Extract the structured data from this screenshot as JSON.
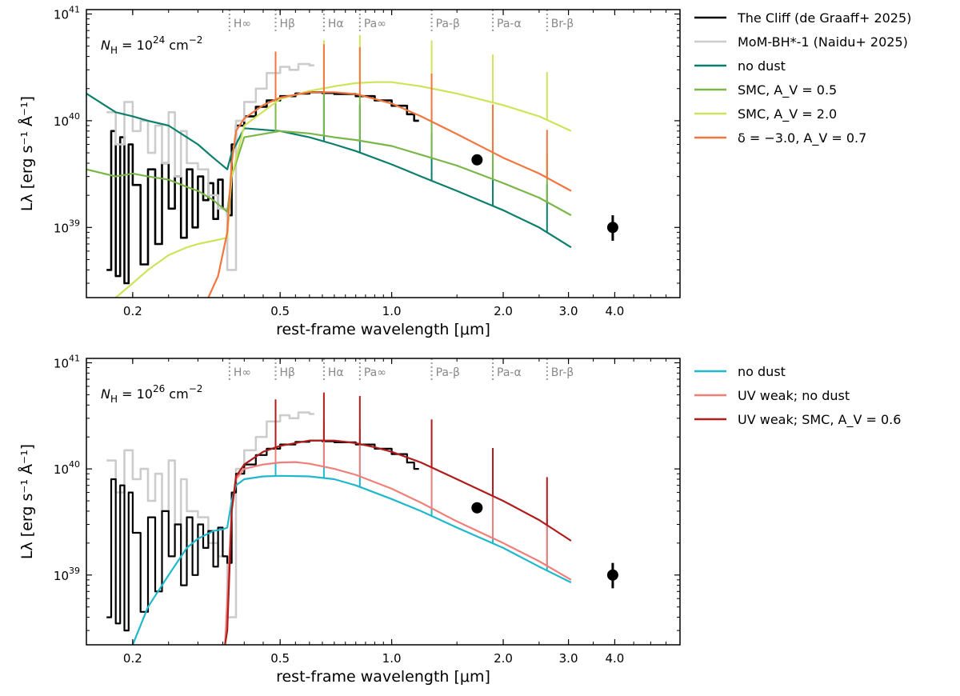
{
  "chart_data": [
    {
      "type": "line",
      "panel": "top",
      "annotation": "N_H = 10^24 cm^-2",
      "annotation_parts": {
        "base": "N",
        "sub": "H",
        "mid": " = 10",
        "sup": "24",
        "unit": " cm",
        "unit_sup": "−2"
      },
      "xlabel": "rest-frame wavelength [μm]",
      "ylabel": "Lλ [erg s⁻¹ Å⁻¹]",
      "xscale": "log",
      "yscale": "log",
      "xlim": [
        0.15,
        6.0
      ],
      "ylim": [
        2.2e+38,
        1.1e+41
      ],
      "xticks": [
        {
          "value": 0.2,
          "label": "0.2"
        },
        {
          "value": 0.5,
          "label": "0.5"
        },
        {
          "value": 1.0,
          "label": "1.0"
        },
        {
          "value": 2.0,
          "label": "2.0"
        },
        {
          "value": 3.0,
          "label": "3.0"
        },
        {
          "value": 4.0,
          "label": "4.0"
        }
      ],
      "yticks": [
        {
          "value": 1e+39,
          "base": "10",
          "exp": "39"
        },
        {
          "value": 1e+40,
          "base": "10",
          "exp": "40"
        },
        {
          "value": 1e+41,
          "base": "10",
          "exp": "41"
        }
      ],
      "emission_lines": [
        {
          "label": "H∞",
          "x": 0.365
        },
        {
          "label": "Hβ",
          "x": 0.4861
        },
        {
          "label": "Hα",
          "x": 0.6563
        },
        {
          "label": "Pa∞",
          "x": 0.8206
        },
        {
          "label": "Pa-β",
          "x": 1.282
        },
        {
          "label": "Pa-α",
          "x": 1.875
        },
        {
          "label": "Br-β",
          "x": 2.626
        }
      ],
      "legend": {
        "placement": "outside-right"
      },
      "photometry": [
        {
          "x": 1.7,
          "y": 4.3e+39,
          "yerr": [
            0,
            0
          ]
        },
        {
          "x": 3.95,
          "y": 1e+39,
          "yerr": [
            2.5e+38,
            3e+38
          ]
        }
      ],
      "series": [
        {
          "name": "The Cliff (de Graaff+ 2025)",
          "color": "#000000",
          "style": "step",
          "width": 2.6,
          "x": [
            0.17,
            0.175,
            0.18,
            0.185,
            0.19,
            0.195,
            0.2,
            0.21,
            0.22,
            0.23,
            0.24,
            0.25,
            0.26,
            0.27,
            0.28,
            0.29,
            0.3,
            0.31,
            0.32,
            0.33,
            0.34,
            0.35,
            0.36,
            0.37,
            0.38,
            0.4,
            0.43,
            0.46,
            0.5,
            0.55,
            0.6,
            0.65,
            0.7,
            0.8,
            0.9,
            1.0,
            1.1,
            1.15
          ],
          "y": [
            4e+38,
            8e+39,
            3.5e+38,
            7e+39,
            3e+38,
            6e+39,
            2.5e+39,
            4.5e+38,
            3.5e+39,
            7e+38,
            4e+39,
            1.5e+39,
            3e+39,
            8e+38,
            3.5e+39,
            1e+39,
            3e+39,
            1.8e+39,
            2.6e+39,
            1.2e+39,
            2.8e+39,
            1.5e+39,
            1.3e+39,
            6e+39,
            9e+39,
            1.1e+40,
            1.35e+40,
            1.55e+40,
            1.7e+40,
            1.8e+40,
            1.85e+40,
            1.82e+40,
            1.78e+40,
            1.7e+40,
            1.55e+40,
            1.38e+40,
            1.15e+40,
            1e+40
          ]
        },
        {
          "name": "MoM-BH*-1 (Naidu+ 2025)",
          "color": "#cccccc",
          "style": "step",
          "width": 2.6,
          "x": [
            0.17,
            0.18,
            0.19,
            0.2,
            0.21,
            0.22,
            0.23,
            0.24,
            0.25,
            0.26,
            0.27,
            0.28,
            0.3,
            0.32,
            0.34,
            0.36,
            0.38,
            0.4,
            0.43,
            0.46,
            0.5,
            0.53,
            0.56,
            0.6
          ],
          "y": [
            1.2e+40,
            6e+39,
            1.5e+40,
            8e+39,
            1e+40,
            5e+39,
            9e+39,
            4e+39,
            1.2e+40,
            3e+39,
            8e+39,
            4e+39,
            3.5e+39,
            2e+39,
            1.5e+39,
            4e+38,
            1e+40,
            1.5e+40,
            2e+40,
            2.8e+40,
            3.2e+40,
            3e+40,
            3.4e+40,
            3.3e+40
          ]
        },
        {
          "name": "no dust",
          "color": "#0b7f6c",
          "style": "line",
          "width": 2.2,
          "x": [
            0.15,
            0.18,
            0.2,
            0.22,
            0.25,
            0.28,
            0.3,
            0.33,
            0.36,
            0.37,
            0.4,
            0.5,
            0.6,
            0.7,
            0.8,
            1.0,
            1.2,
            1.5,
            2.0,
            2.5,
            3.05
          ],
          "y": [
            1.8e+40,
            1.2e+40,
            1.1e+40,
            1e+40,
            9e+39,
            7e+39,
            6e+39,
            4.5e+39,
            3.5e+39,
            5e+39,
            8.5e+39,
            8e+39,
            7e+39,
            6e+39,
            5.2e+39,
            3.9e+39,
            3e+39,
            2.2e+39,
            1.45e+39,
            1e+39,
            6.5e+38
          ]
        },
        {
          "name": "SMC, A_V = 0.5",
          "color": "#7ab648",
          "style": "line",
          "width": 2.2,
          "x": [
            0.15,
            0.18,
            0.2,
            0.22,
            0.25,
            0.28,
            0.3,
            0.33,
            0.36,
            0.37,
            0.4,
            0.5,
            0.6,
            0.7,
            0.8,
            1.0,
            1.2,
            1.5,
            2.0,
            2.5,
            3.05
          ],
          "y": [
            3.5e+39,
            3e+39,
            3.2e+39,
            3e+39,
            2.8e+39,
            2.4e+39,
            2.2e+39,
            1.8e+39,
            1.4e+39,
            3e+39,
            7e+39,
            8e+39,
            7.6e+39,
            7e+39,
            6.6e+39,
            5.8e+39,
            4.8e+39,
            3.8e+39,
            2.6e+39,
            1.9e+39,
            1.3e+39
          ]
        },
        {
          "name": "SMC, A_V = 2.0",
          "color": "#cfe35a",
          "style": "line",
          "width": 2.2,
          "x": [
            0.18,
            0.2,
            0.22,
            0.25,
            0.28,
            0.3,
            0.33,
            0.36,
            0.37,
            0.4,
            0.5,
            0.6,
            0.7,
            0.8,
            0.9,
            1.0,
            1.2,
            1.5,
            2.0,
            2.5,
            3.05
          ],
          "y": [
            2.2e+38,
            3e+38,
            4e+38,
            5.5e+38,
            6.5e+38,
            7e+38,
            7.5e+38,
            8e+38,
            3e+39,
            9e+39,
            1.6e+40,
            1.9e+40,
            2.1e+40,
            2.25e+40,
            2.3e+40,
            2.3e+40,
            2.1e+40,
            1.8e+40,
            1.4e+40,
            1.1e+40,
            8e+39
          ]
        },
        {
          "name": "δ = −3.0, A_V = 0.7",
          "color": "#f4763f",
          "style": "line",
          "width": 2.2,
          "x": [
            0.32,
            0.34,
            0.36,
            0.37,
            0.38,
            0.4,
            0.45,
            0.5,
            0.6,
            0.7,
            0.8,
            0.9,
            1.0,
            1.2,
            1.5,
            2.0,
            2.5,
            3.05
          ],
          "y": [
            2.2e+38,
            3.5e+38,
            9e+38,
            4e+39,
            8e+39,
            1.05e+40,
            1.4e+40,
            1.65e+40,
            1.85e+40,
            1.85e+40,
            1.78e+40,
            1.6e+40,
            1.45e+40,
            1.1e+40,
            7.5e+39,
            4.5e+39,
            3.2e+39,
            2.2e+39
          ]
        }
      ]
    },
    {
      "type": "line",
      "panel": "bottom",
      "annotation": "N_H = 10^26 cm^-2",
      "annotation_parts": {
        "base": "N",
        "sub": "H",
        "mid": " = 10",
        "sup": "26",
        "unit": " cm",
        "unit_sup": "−2"
      },
      "xlabel": "rest-frame wavelength [μm]",
      "ylabel": "Lλ [erg s⁻¹ Å⁻¹]",
      "xscale": "log",
      "yscale": "log",
      "xlim": [
        0.15,
        6.0
      ],
      "ylim": [
        2.2e+38,
        1.1e+41
      ],
      "xticks": [
        {
          "value": 0.2,
          "label": "0.2"
        },
        {
          "value": 0.5,
          "label": "0.5"
        },
        {
          "value": 1.0,
          "label": "1.0"
        },
        {
          "value": 2.0,
          "label": "2.0"
        },
        {
          "value": 3.0,
          "label": "3.0"
        },
        {
          "value": 4.0,
          "label": "4.0"
        }
      ],
      "yticks": [
        {
          "value": 1e+39,
          "base": "10",
          "exp": "39"
        },
        {
          "value": 1e+40,
          "base": "10",
          "exp": "40"
        },
        {
          "value": 1e+41,
          "base": "10",
          "exp": "41"
        }
      ],
      "emission_lines": [
        {
          "label": "H∞",
          "x": 0.365
        },
        {
          "label": "Hβ",
          "x": 0.4861
        },
        {
          "label": "Hα",
          "x": 0.6563
        },
        {
          "label": "Pa∞",
          "x": 0.8206
        },
        {
          "label": "Pa-β",
          "x": 1.282
        },
        {
          "label": "Pa-α",
          "x": 1.875
        },
        {
          "label": "Br-β",
          "x": 2.626
        }
      ],
      "legend": {
        "placement": "outside-right"
      },
      "photometry": [
        {
          "x": 1.7,
          "y": 4.3e+39,
          "yerr": [
            0,
            0
          ]
        },
        {
          "x": 3.95,
          "y": 1e+39,
          "yerr": [
            2.5e+38,
            3e+38
          ]
        }
      ],
      "series": [
        {
          "name": "",
          "color": "#cccccc",
          "style": "step",
          "width": 2.6,
          "x": [
            0.17,
            0.18,
            0.19,
            0.2,
            0.21,
            0.22,
            0.23,
            0.24,
            0.25,
            0.26,
            0.27,
            0.28,
            0.3,
            0.32,
            0.34,
            0.36,
            0.38,
            0.4,
            0.43,
            0.46,
            0.5,
            0.53,
            0.56,
            0.6
          ],
          "y": [
            1.2e+40,
            6e+39,
            1.5e+40,
            8e+39,
            1e+40,
            5e+39,
            9e+39,
            4e+39,
            1.2e+40,
            3e+39,
            8e+39,
            4e+39,
            3.5e+39,
            2e+39,
            1.5e+39,
            4e+38,
            1e+40,
            1.5e+40,
            2e+40,
            2.8e+40,
            3.2e+40,
            3e+40,
            3.4e+40,
            3.3e+40
          ]
        },
        {
          "name": "",
          "color": "#000000",
          "style": "step",
          "width": 2.2,
          "x": [
            0.17,
            0.175,
            0.18,
            0.185,
            0.19,
            0.195,
            0.2,
            0.21,
            0.22,
            0.23,
            0.24,
            0.25,
            0.26,
            0.27,
            0.28,
            0.29,
            0.3,
            0.31,
            0.32,
            0.33,
            0.34,
            0.35,
            0.36,
            0.37,
            0.38,
            0.4,
            0.43,
            0.46,
            0.5,
            0.55,
            0.6,
            0.65,
            0.7,
            0.8,
            0.9,
            1.0,
            1.1,
            1.15
          ],
          "y": [
            4e+38,
            8e+39,
            3.5e+38,
            7e+39,
            3e+38,
            6e+39,
            2.5e+39,
            4.5e+38,
            3.5e+39,
            7e+38,
            4e+39,
            1.5e+39,
            3e+39,
            8e+38,
            3.5e+39,
            1e+39,
            3e+39,
            1.8e+39,
            2.6e+39,
            1.2e+39,
            2.8e+39,
            1.5e+39,
            1.3e+39,
            6e+39,
            9e+39,
            1.1e+40,
            1.35e+40,
            1.55e+40,
            1.7e+40,
            1.8e+40,
            1.85e+40,
            1.82e+40,
            1.78e+40,
            1.7e+40,
            1.55e+40,
            1.38e+40,
            1.15e+40,
            1e+40
          ]
        },
        {
          "name": "no dust",
          "color": "#1fb8cc",
          "style": "line",
          "width": 2.2,
          "x": [
            0.2,
            0.22,
            0.25,
            0.28,
            0.3,
            0.33,
            0.35,
            0.36,
            0.37,
            0.38,
            0.4,
            0.45,
            0.5,
            0.6,
            0.7,
            0.8,
            1.0,
            1.2,
            1.5,
            2.0,
            2.5,
            3.05
          ],
          "y": [
            2.2e+38,
            5e+38,
            1e+39,
            1.8e+39,
            2.2e+39,
            2.6e+39,
            2.7e+39,
            2.8e+39,
            5e+39,
            7e+39,
            8e+39,
            8.5e+39,
            8.6e+39,
            8.5e+39,
            8e+39,
            7e+39,
            5.2e+39,
            4e+39,
            2.8e+39,
            1.8e+39,
            1.2e+39,
            8.5e+38
          ]
        },
        {
          "name": "UV weak; no dust",
          "color": "#f07f7a",
          "style": "line",
          "width": 2.2,
          "x": [
            0.355,
            0.36,
            0.37,
            0.38,
            0.4,
            0.45,
            0.5,
            0.55,
            0.6,
            0.7,
            0.8,
            1.0,
            1.2,
            1.5,
            2.0,
            2.5,
            3.05
          ],
          "y": [
            2.2e+38,
            6e+38,
            4e+39,
            8e+39,
            1e+40,
            1.1e+40,
            1.15e+40,
            1.16e+40,
            1.12e+40,
            1e+40,
            8.8e+39,
            6.5e+39,
            4.8e+39,
            3.2e+39,
            2e+39,
            1.35e+39,
            9e+38
          ]
        },
        {
          "name": "UV weak; SMC, A_V = 0.6",
          "color": "#b01c1c",
          "style": "line",
          "width": 2.2,
          "x": [
            0.355,
            0.36,
            0.37,
            0.38,
            0.4,
            0.45,
            0.5,
            0.6,
            0.7,
            0.8,
            0.9,
            1.0,
            1.2,
            1.5,
            2.0,
            2.5,
            3.05
          ],
          "y": [
            2.2e+38,
            3e+38,
            4e+39,
            8.5e+39,
            1.1e+40,
            1.45e+40,
            1.65e+40,
            1.85e+40,
            1.85e+40,
            1.75e+40,
            1.6e+40,
            1.45e+40,
            1.15e+40,
            8e+39,
            5e+39,
            3.3e+39,
            2.1e+39
          ]
        }
      ]
    }
  ]
}
